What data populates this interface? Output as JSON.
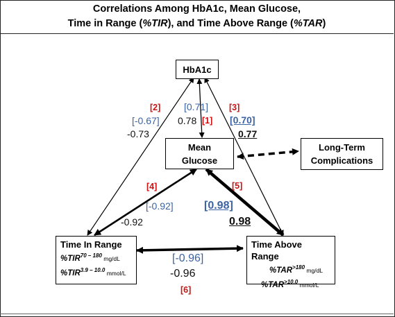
{
  "title": {
    "line1": "Correlations Among HbA1c, Mean Glucose,",
    "line2_a": "Time in Range (",
    "line2_tir": "%TIR",
    "line2_b": "), and Time Above Range (",
    "line2_tar": "%TAR",
    "line2_c": ")"
  },
  "nodes": {
    "hba1c": "HbA1c",
    "mean_glucose_1": "Mean",
    "mean_glucose_2": "Glucose",
    "long_term_1": "Long-Term",
    "long_term_2": "Complications",
    "tir": {
      "title": "Time In Range",
      "item1_name": "%TIR",
      "item1_sup": "70 – 180",
      "item1_unit": " mg/dL",
      "item2_name": "%TIR",
      "item2_sup": "3.9 – 10.0",
      "item2_unit": " mmol/L"
    },
    "tar": {
      "title": "Time Above Range",
      "item1_name": "%TAR",
      "item1_sup": ">180",
      "item1_unit": " mg/dL",
      "item2_name": "%TAR",
      "item2_sup": ">10.0",
      "item2_unit": " mmol/L"
    }
  },
  "correlations": {
    "c1": {
      "ref": "[1]",
      "value": "0.78",
      "bracketed": "[0.71]"
    },
    "c2": {
      "ref": "[2]",
      "value": "-0.73",
      "bracketed": "[-0.67]"
    },
    "c3": {
      "ref": "[3]",
      "value": "0.77",
      "bracketed": "[0.70]"
    },
    "c4": {
      "ref": "[4]",
      "value": "-0.92",
      "bracketed": "[-0.92]"
    },
    "c5": {
      "ref": "[5]",
      "value": "0.98",
      "bracketed": "[0.98]"
    },
    "c6": {
      "ref": "[6]",
      "value": "-0.96",
      "bracketed": "[-0.96]"
    }
  },
  "colors": {
    "ref_red": "#d01010",
    "bracket_blue": "#3c63a3",
    "text_black": "#111111"
  }
}
